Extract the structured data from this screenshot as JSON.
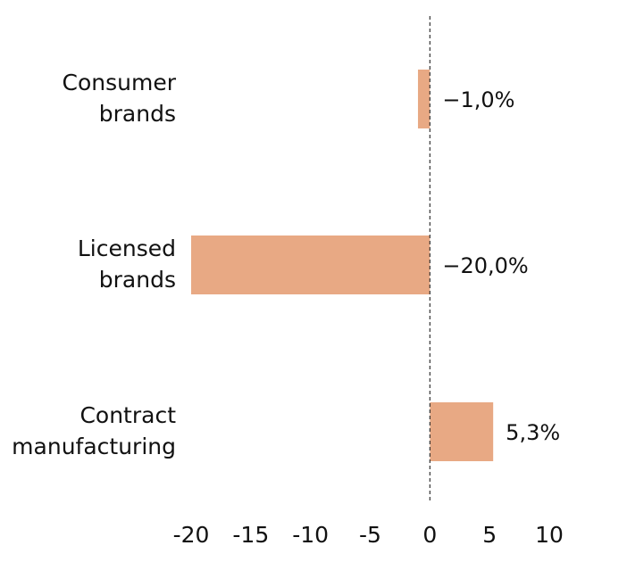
{
  "chart_data": {
    "type": "bar",
    "orientation": "horizontal",
    "categories": [
      [
        "Consumer",
        "brands"
      ],
      [
        "Licensed",
        "brands"
      ],
      [
        "Contract",
        "manufacturing"
      ]
    ],
    "values": [
      -1.0,
      -20.0,
      5.3
    ],
    "data_labels": [
      "−1,0%",
      "−20,0%",
      "5,3%"
    ],
    "xlim": [
      -20,
      10
    ],
    "xticks": [
      -20,
      -15,
      -10,
      -5,
      0,
      5,
      10
    ],
    "xtick_labels": [
      "-20",
      "-15",
      "-10",
      "-5",
      "0",
      "5",
      "10"
    ],
    "zero_line": "dashed",
    "grid": false,
    "bar_color": "#E8A984"
  }
}
